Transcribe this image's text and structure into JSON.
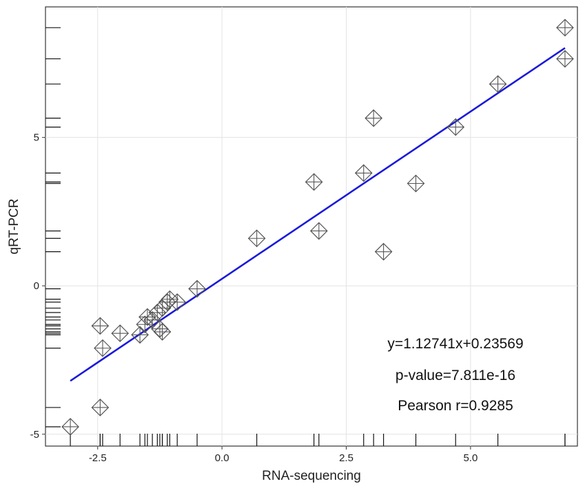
{
  "chart_data": {
    "type": "scatter",
    "xlabel": "RNA-sequencing",
    "ylabel": "qRT-PCR",
    "xlim": [
      -3.55,
      7.15
    ],
    "ylim": [
      -5.4,
      9.4
    ],
    "x_ticks": [
      -2.5,
      0.0,
      2.5,
      5.0
    ],
    "x_tick_labels": [
      "-2.5",
      "0.0",
      "2.5",
      "5.0"
    ],
    "y_ticks": [
      -5,
      0,
      5
    ],
    "y_tick_labels": [
      "-5",
      "0",
      "5"
    ],
    "grid": true,
    "rug": true,
    "marker": "crossed-diamond",
    "line_color": "#1a1adb",
    "marker_color": "#555555",
    "fit": {
      "slope": 1.12741,
      "intercept": 0.23569,
      "x_range": [
        -3.05,
        6.9
      ]
    },
    "points": [
      {
        "x": -3.05,
        "y": -4.75
      },
      {
        "x": -2.45,
        "y": -4.1
      },
      {
        "x": -2.4,
        "y": -2.1
      },
      {
        "x": -2.45,
        "y": -1.35
      },
      {
        "x": -2.05,
        "y": -1.6
      },
      {
        "x": -1.65,
        "y": -1.65
      },
      {
        "x": -1.55,
        "y": -1.3
      },
      {
        "x": -1.5,
        "y": -1.05
      },
      {
        "x": -1.4,
        "y": -1.15
      },
      {
        "x": -1.3,
        "y": -0.9
      },
      {
        "x": -1.25,
        "y": -1.45
      },
      {
        "x": -1.2,
        "y": -0.75
      },
      {
        "x": -1.2,
        "y": -1.55
      },
      {
        "x": -1.1,
        "y": -0.55
      },
      {
        "x": -1.05,
        "y": -0.45
      },
      {
        "x": -0.9,
        "y": -0.55
      },
      {
        "x": -0.5,
        "y": -0.1
      },
      {
        "x": 0.7,
        "y": 1.6
      },
      {
        "x": 1.85,
        "y": 3.5
      },
      {
        "x": 1.95,
        "y": 1.85
      },
      {
        "x": 2.85,
        "y": 3.8
      },
      {
        "x": 3.05,
        "y": 5.65
      },
      {
        "x": 3.25,
        "y": 1.15
      },
      {
        "x": 3.9,
        "y": 3.45
      },
      {
        "x": 4.7,
        "y": 5.35
      },
      {
        "x": 5.55,
        "y": 6.8
      },
      {
        "x": 6.9,
        "y": 8.7
      },
      {
        "x": 6.9,
        "y": 7.65
      }
    ],
    "annotations": [
      "y=1.12741x+0.23569",
      "p-value=7.811e-16",
      "Pearson r=0.9285"
    ]
  }
}
